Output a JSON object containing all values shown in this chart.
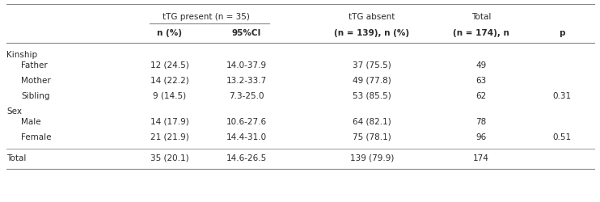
{
  "col_header1": [
    "tTG present (n = 35)",
    "tTG absent",
    "Total"
  ],
  "col_header2": [
    "n (%)",
    "95%CI",
    "(n = 139), n (%)",
    "(n = 174), n",
    "p"
  ],
  "section_kinship": "Kinship",
  "section_sex": "Sex",
  "rows": [
    {
      "label": "Father",
      "indent": true,
      "n_pct": "12 (24.5)",
      "ci": "14.0-37.9",
      "absent": "37 (75.5)",
      "total": "49",
      "p": ""
    },
    {
      "label": "Mother",
      "indent": true,
      "n_pct": "14 (22.2)",
      "ci": "13.2-33.7",
      "absent": "49 (77.8)",
      "total": "63",
      "p": ""
    },
    {
      "label": "Sibling",
      "indent": true,
      "n_pct": "9 (14.5)",
      "ci": "7.3-25.0",
      "absent": "53 (85.5)",
      "total": "62",
      "p": "0.31"
    },
    {
      "label": "Male",
      "indent": true,
      "n_pct": "14 (17.9)",
      "ci": "10.6-27.6",
      "absent": "64 (82.1)",
      "total": "78",
      "p": ""
    },
    {
      "label": "Female",
      "indent": true,
      "n_pct": "21 (21.9)",
      "ci": "14.4-31.0",
      "absent": "75 (78.1)",
      "total": "96",
      "p": "0.51"
    },
    {
      "label": "Total",
      "indent": false,
      "n_pct": "35 (20.1)",
      "ci": "14.6-26.5",
      "absent": "139 (79.9)",
      "total": "174",
      "p": ""
    }
  ],
  "background_color": "#ffffff",
  "text_color": "#2a2a2a",
  "line_color": "#888888",
  "font_size": 7.5,
  "header_font_size": 7.5
}
